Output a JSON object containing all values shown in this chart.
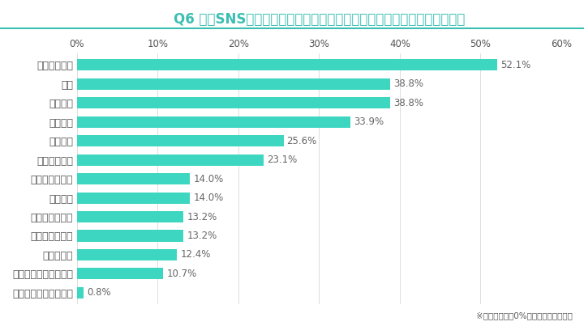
{
  "title": "Q6 今後SNSマーケティングで活用を検討しているのはどの分野ですか？",
  "categories": [
    "アイデア創出",
    "校閲",
    "動画生成",
    "画像生成",
    "音声生成",
    "投稿文の作成",
    "チャットボッド",
    "計画作成",
    "背景調査の実施",
    "多言語への対応",
    "データ解析",
    "ハッシュタグの最適化",
    "特にない／わからない"
  ],
  "values": [
    52.1,
    38.8,
    38.8,
    33.9,
    25.6,
    23.1,
    14.0,
    14.0,
    13.2,
    13.2,
    12.4,
    10.7,
    0.8
  ],
  "bar_color": "#3DD6C0",
  "background_color": "#FFFFFF",
  "title_color": "#3BBFB2",
  "label_color": "#555555",
  "value_color": "#666666",
  "grid_color": "#DDDDDD",
  "line_color": "#3BBFB2",
  "footnote": "※「その他」は0%の回答となりました",
  "xlim": [
    0,
    60
  ],
  "xticks": [
    0,
    10,
    20,
    30,
    40,
    50,
    60
  ],
  "xtick_labels": [
    "0%",
    "10%",
    "20%",
    "30%",
    "40%",
    "50%",
    "60%"
  ],
  "title_fontsize": 12,
  "tick_fontsize": 8.5,
  "label_fontsize": 9,
  "value_fontsize": 8.5,
  "footnote_fontsize": 7.5
}
